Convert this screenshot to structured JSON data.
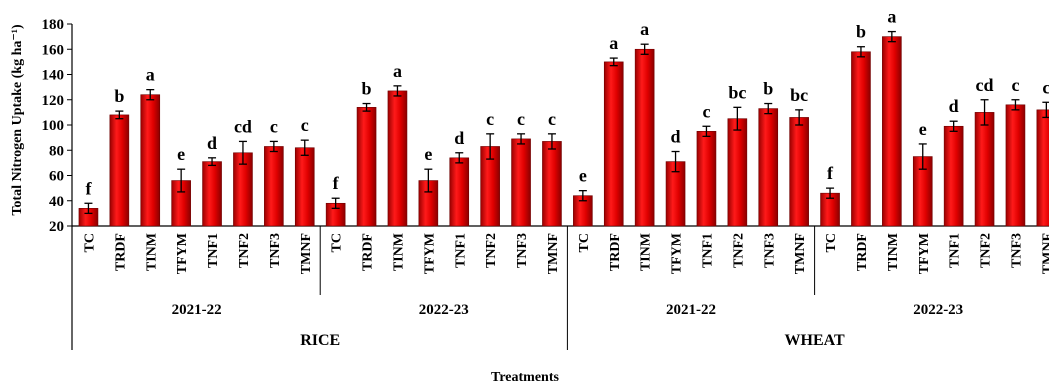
{
  "colors": {
    "bar": "#e00000",
    "bar_dark": "#8a0000",
    "axis": "#000000"
  },
  "chart_data": {
    "type": "bar",
    "xlabel": "Treatments",
    "ylabel": "Total Nitrogen Uptake (kg ha⁻¹)",
    "ylim": [
      20,
      180
    ],
    "yticks": [
      20,
      40,
      60,
      80,
      100,
      120,
      140,
      160,
      180
    ],
    "grid": false,
    "categories": [
      "TC",
      "TRDF",
      "TINM",
      "TFYM",
      "TNF1",
      "TNF2",
      "TNF3",
      "TMNF"
    ],
    "groups": [
      {
        "crop": "RICE",
        "year": "2021-22",
        "values": [
          34,
          108,
          124,
          56,
          71,
          78,
          83,
          82
        ],
        "errors": [
          4,
          3,
          4,
          9,
          3,
          9,
          4,
          6
        ],
        "letters": [
          "f",
          "b",
          "a",
          "e",
          "d",
          "cd",
          "c",
          "c"
        ]
      },
      {
        "crop": "RICE",
        "year": "2022-23",
        "values": [
          38,
          114,
          127,
          56,
          74,
          83,
          89,
          87
        ],
        "errors": [
          4,
          3,
          4,
          9,
          4,
          10,
          4,
          6
        ],
        "letters": [
          "f",
          "b",
          "a",
          "e",
          "d",
          "c",
          "c",
          "c"
        ]
      },
      {
        "crop": "WHEAT",
        "year": "2021-22",
        "values": [
          44,
          150,
          160,
          71,
          95,
          105,
          113,
          106
        ],
        "errors": [
          4,
          3,
          4,
          8,
          4,
          9,
          4,
          6
        ],
        "letters": [
          "e",
          "a",
          "a",
          "d",
          "c",
          "bc",
          "b",
          "bc"
        ]
      },
      {
        "crop": "WHEAT",
        "year": "2022-23",
        "values": [
          46,
          158,
          170,
          75,
          99,
          110,
          116,
          112
        ],
        "errors": [
          4,
          4,
          4,
          10,
          4,
          10,
          4,
          6
        ],
        "letters": [
          "f",
          "b",
          "a",
          "e",
          "d",
          "cd",
          "c",
          "c"
        ]
      }
    ],
    "crops": [
      "RICE",
      "WHEAT"
    ]
  }
}
